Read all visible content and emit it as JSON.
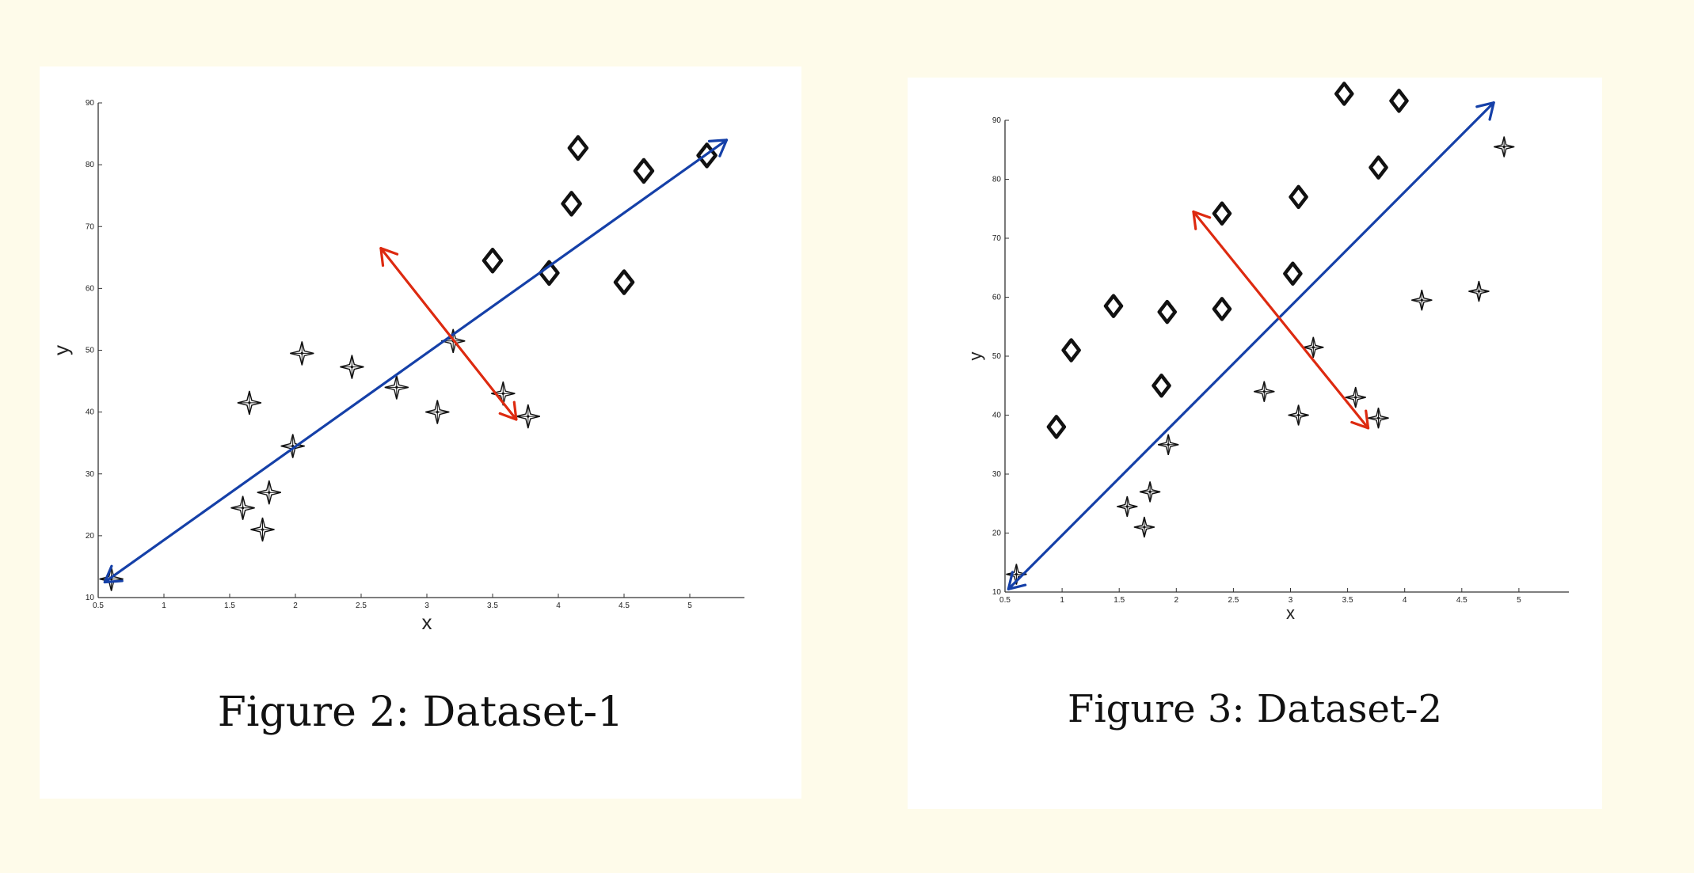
{
  "chart_data": [
    {
      "type": "scatter",
      "caption": "Figure 2:  Dataset-1",
      "xlabel": "x",
      "ylabel": "y",
      "xlim": [
        0.5,
        5.5
      ],
      "ylim": [
        10,
        90
      ],
      "xticks": [
        0.5,
        1,
        1.5,
        2,
        2.5,
        3,
        3.5,
        4,
        4.5,
        5
      ],
      "yticks": [
        10,
        20,
        30,
        40,
        50,
        60,
        70,
        80,
        90
      ],
      "series": [
        {
          "marker": "star",
          "points": [
            [
              0.6,
              13
            ],
            [
              1.6,
              24.5
            ],
            [
              1.65,
              41.5
            ],
            [
              1.75,
              21
            ],
            [
              1.8,
              27
            ],
            [
              1.98,
              34.5
            ],
            [
              2.05,
              49.5
            ],
            [
              2.43,
              47.3
            ],
            [
              2.77,
              44
            ],
            [
              3.08,
              40
            ],
            [
              3.2,
              51.5
            ],
            [
              3.58,
              43
            ],
            [
              3.77,
              39.3
            ]
          ]
        },
        {
          "marker": "diamond",
          "points": [
            [
              3.5,
              64.5
            ],
            [
              3.93,
              62.5
            ],
            [
              4.1,
              73.7
            ],
            [
              4.15,
              82.7
            ],
            [
              4.5,
              61
            ],
            [
              4.65,
              79
            ],
            [
              5.13,
              81.5
            ]
          ]
        }
      ],
      "annotations": [
        {
          "kind": "double-arrow",
          "color": "#1540a8",
          "from": [
            0.55,
            12.5
          ],
          "to": [
            5.28,
            84
          ]
        },
        {
          "kind": "double-arrow",
          "color": "#dd2a10",
          "from": [
            2.65,
            66.5
          ],
          "to": [
            3.68,
            38.8
          ]
        }
      ],
      "colors": {
        "points": "#111111",
        "principal_arrow": "#1540a8",
        "orthogonal_arrow": "#dd2a10"
      }
    },
    {
      "type": "scatter",
      "caption": "Figure 3:  Dataset-2",
      "xlabel": "x",
      "ylabel": "y",
      "xlim": [
        0.5,
        5.5
      ],
      "ylim": [
        10,
        90
      ],
      "xticks": [
        0.5,
        1,
        1.5,
        2,
        2.5,
        3,
        3.5,
        4,
        4.5,
        5
      ],
      "yticks": [
        10,
        20,
        30,
        40,
        50,
        60,
        70,
        80,
        90
      ],
      "series": [
        {
          "marker": "star",
          "points": [
            [
              0.6,
              13
            ],
            [
              1.57,
              24.5
            ],
            [
              1.72,
              21
            ],
            [
              1.77,
              27
            ],
            [
              1.93,
              35
            ],
            [
              2.77,
              44
            ],
            [
              3.07,
              40
            ],
            [
              3.2,
              51.5
            ],
            [
              3.57,
              43
            ],
            [
              3.77,
              39.5
            ],
            [
              4.15,
              59.5
            ],
            [
              4.65,
              61
            ],
            [
              4.87,
              85.5
            ]
          ]
        },
        {
          "marker": "diamond",
          "points": [
            [
              0.95,
              38
            ],
            [
              1.08,
              51
            ],
            [
              1.45,
              58.5
            ],
            [
              1.87,
              45
            ],
            [
              1.92,
              57.5
            ],
            [
              2.4,
              74.2
            ],
            [
              2.4,
              58
            ],
            [
              3.02,
              64
            ],
            [
              3.07,
              77
            ],
            [
              3.47,
              94.5
            ],
            [
              3.77,
              82
            ],
            [
              3.95,
              93.3
            ]
          ]
        }
      ],
      "annotations": [
        {
          "kind": "double-arrow",
          "color": "#1540a8",
          "from": [
            0.53,
            10.5
          ],
          "to": [
            4.78,
            93
          ]
        },
        {
          "kind": "double-arrow",
          "color": "#dd2a10",
          "from": [
            2.15,
            74.5
          ],
          "to": [
            3.68,
            37.8
          ]
        }
      ],
      "colors": {
        "points": "#111111",
        "principal_arrow": "#1540a8",
        "orthogonal_arrow": "#dd2a10"
      }
    }
  ]
}
